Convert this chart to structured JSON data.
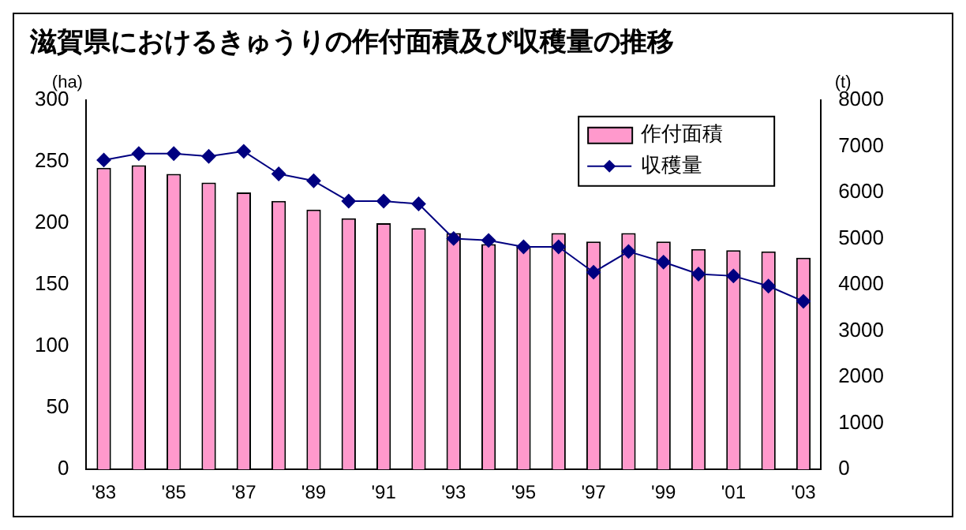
{
  "chart_data": {
    "type": "bar",
    "title": "滋賀県におけるきゅうりの作付面積及び収穫量の推移",
    "ylabel": "(ha)",
    "y2label": "(t)",
    "categories": [
      "'83",
      null,
      "'85",
      null,
      "'87",
      null,
      "'89",
      null,
      "'91",
      null,
      "'93",
      null,
      "'95",
      null,
      "'97",
      null,
      "'99",
      null,
      "'01",
      null,
      "'03"
    ],
    "series": [
      {
        "name": "作付面積",
        "color": "#ff99cc",
        "values": [
          245,
          247,
          240,
          233,
          225,
          218,
          211,
          204,
          200,
          196,
          192,
          183,
          181,
          192,
          185,
          192,
          185,
          179,
          178,
          177,
          172
        ]
      },
      {
        "name": "収穫量",
        "type": "line",
        "axis": "y2",
        "color": "#000080",
        "marker": "diamond",
        "values": [
          6700,
          6840,
          6840,
          6780,
          6890,
          6400,
          6250,
          5810,
          5810,
          5750,
          5000,
          4960,
          4820,
          4820,
          4270,
          4720,
          4490,
          4230,
          4190,
          3970,
          3640
        ]
      }
    ],
    "ylim": [
      0,
      300
    ],
    "yticks": [
      0,
      50,
      100,
      150,
      200,
      250,
      300
    ],
    "y2lim": [
      0,
      8000
    ],
    "y2ticks": [
      0,
      1000,
      2000,
      3000,
      4000,
      5000,
      6000,
      7000,
      8000
    ],
    "grid": false,
    "legend": "top right"
  }
}
